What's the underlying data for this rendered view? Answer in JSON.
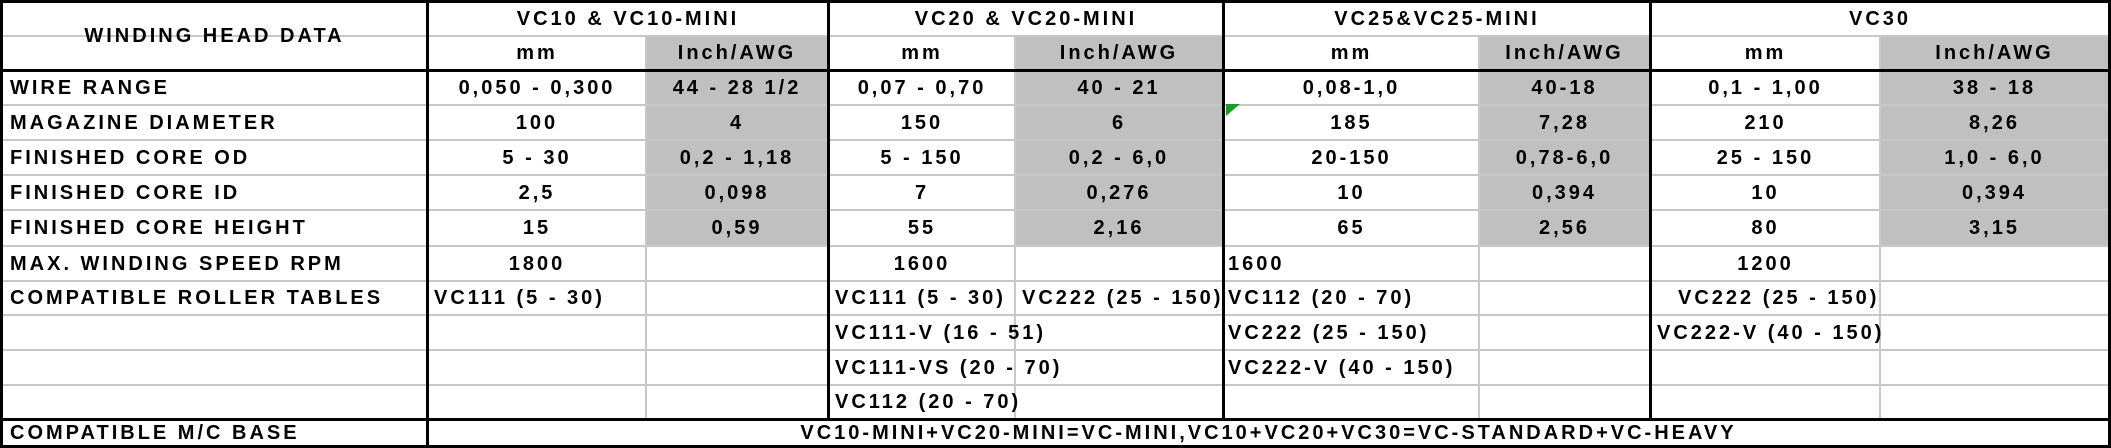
{
  "header": {
    "row_title": "WINDING HEAD DATA",
    "models": [
      {
        "name": "VC10 & VC10-MINI",
        "unit_mm": "mm",
        "unit_inch": "Inch/AWG"
      },
      {
        "name": "VC20 & VC20-MINI",
        "unit_mm": "mm",
        "unit_inch": "Inch/AWG"
      },
      {
        "name": "VC25&VC25-MINI",
        "unit_mm": "mm",
        "unit_inch": "Inch/AWG"
      },
      {
        "name": "VC30",
        "unit_mm": "mm",
        "unit_inch": "Inch/AWG"
      }
    ]
  },
  "rows": [
    {
      "label": "WIRE RANGE",
      "values": [
        "0,050 - 0,300",
        "44 - 28 1/2",
        "0,07 - 0,70",
        "40 - 21",
        "0,08-1,0",
        "40-18",
        "0,1 - 1,00",
        "38 - 18"
      ]
    },
    {
      "label": "MAGAZINE DIAMETER",
      "values": [
        "100",
        "4",
        "150",
        "6",
        "185",
        "7,28",
        "210",
        "8,26"
      ]
    },
    {
      "label": "FINISHED CORE OD",
      "values": [
        "5 - 30",
        "0,2 - 1,18",
        "5 - 150",
        "0,2 - 6,0",
        "20-150",
        "0,78-6,0",
        "25 - 150",
        "1,0 - 6,0"
      ]
    },
    {
      "label": "FINISHED CORE ID",
      "values": [
        "2,5",
        "0,098",
        "7",
        "0,276",
        "10",
        "0,394",
        "10",
        "0,394"
      ]
    },
    {
      "label": "FINISHED CORE HEIGHT",
      "values": [
        "15",
        "0,59",
        "55",
        "2,16",
        "65",
        "2,56",
        "80",
        "3,15"
      ]
    },
    {
      "label": "MAX. WINDING SPEED RPM",
      "values": [
        "1800",
        "1600",
        "1600",
        "1200"
      ]
    }
  ],
  "roller_tables": {
    "label": "COMPATIBLE ROLLER TABLES",
    "vc10": [
      "VC111 (5 - 30)"
    ],
    "vc20": [
      "VC111 (5 - 30)",
      "VC222 (25 - 150)",
      "VC111-V (16 - 51)",
      "VC111-VS (20 - 70)",
      "VC112 (20 - 70)"
    ],
    "vc25": [
      "VC112 (20 - 70)",
      "VC222 (25 - 150)",
      "VC222-V (40 - 150)"
    ],
    "vc30": [
      "VC222 (25 - 150)",
      "VC222-V (40 - 150)"
    ]
  },
  "base": {
    "label": "COMPATIBLE M/C BASE",
    "value": "VC10-MINI+VC20-MINI=VC-MINI,VC10+VC20+VC30=VC-STANDARD+VC-HEAVY"
  },
  "colors": {
    "shade": "#c0c0c0",
    "grid": "#c8c8c8",
    "border": "#000000",
    "marker": "#1a9a2a"
  }
}
